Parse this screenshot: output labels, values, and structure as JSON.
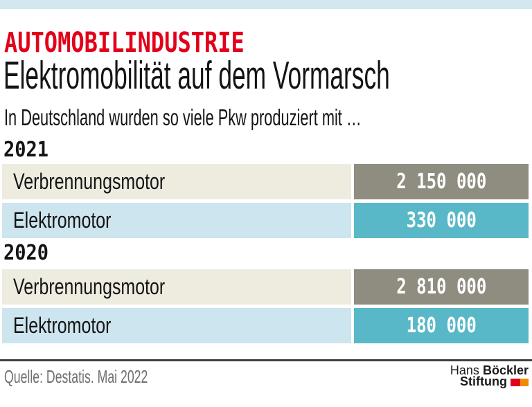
{
  "header": {
    "kicker": "AUTOMOBILINDUSTRIE",
    "title": "Elektromobilität auf dem Vormarsch",
    "subtitle": "In Deutschland wurden so viele Pkw produziert mit …"
  },
  "chart_data": {
    "type": "table",
    "title": "Elektromobilität auf dem Vormarsch",
    "subtitle": "In Deutschland wurden so viele Pkw produziert mit …",
    "unit": "produzierte Pkw",
    "groups": [
      {
        "year": "2021",
        "rows": [
          {
            "label": "Verbrennungsmotor",
            "value": 2150000,
            "value_label": "2 150 000"
          },
          {
            "label": "Elektromotor",
            "value": 330000,
            "value_label": "330 000"
          }
        ]
      },
      {
        "year": "2020",
        "rows": [
          {
            "label": "Verbrennungsmotor",
            "value": 2810000,
            "value_label": "2 810 000"
          },
          {
            "label": "Elektromotor",
            "value": 180000,
            "value_label": "180 000"
          }
        ]
      }
    ],
    "source": "Quelle: Destatis. Mai 2022",
    "legend_position": "none",
    "grid": false
  },
  "footer": {
    "source": "Quelle: Destatis. Mai 2022",
    "logo": {
      "name_regular": "Hans",
      "name_bold": "Böckler",
      "line2_bold": "Stiftung"
    }
  },
  "colors": {
    "accent_red": "#e2001a",
    "topbar_blue": "#d2e7ef",
    "row_beige": "#eeecdf",
    "row_lightblue": "#cde5ee",
    "box_gray": "#8f8c80",
    "box_teal": "#58b8c7",
    "logo_red": "#e2001a",
    "logo_orange": "#f08c00"
  }
}
